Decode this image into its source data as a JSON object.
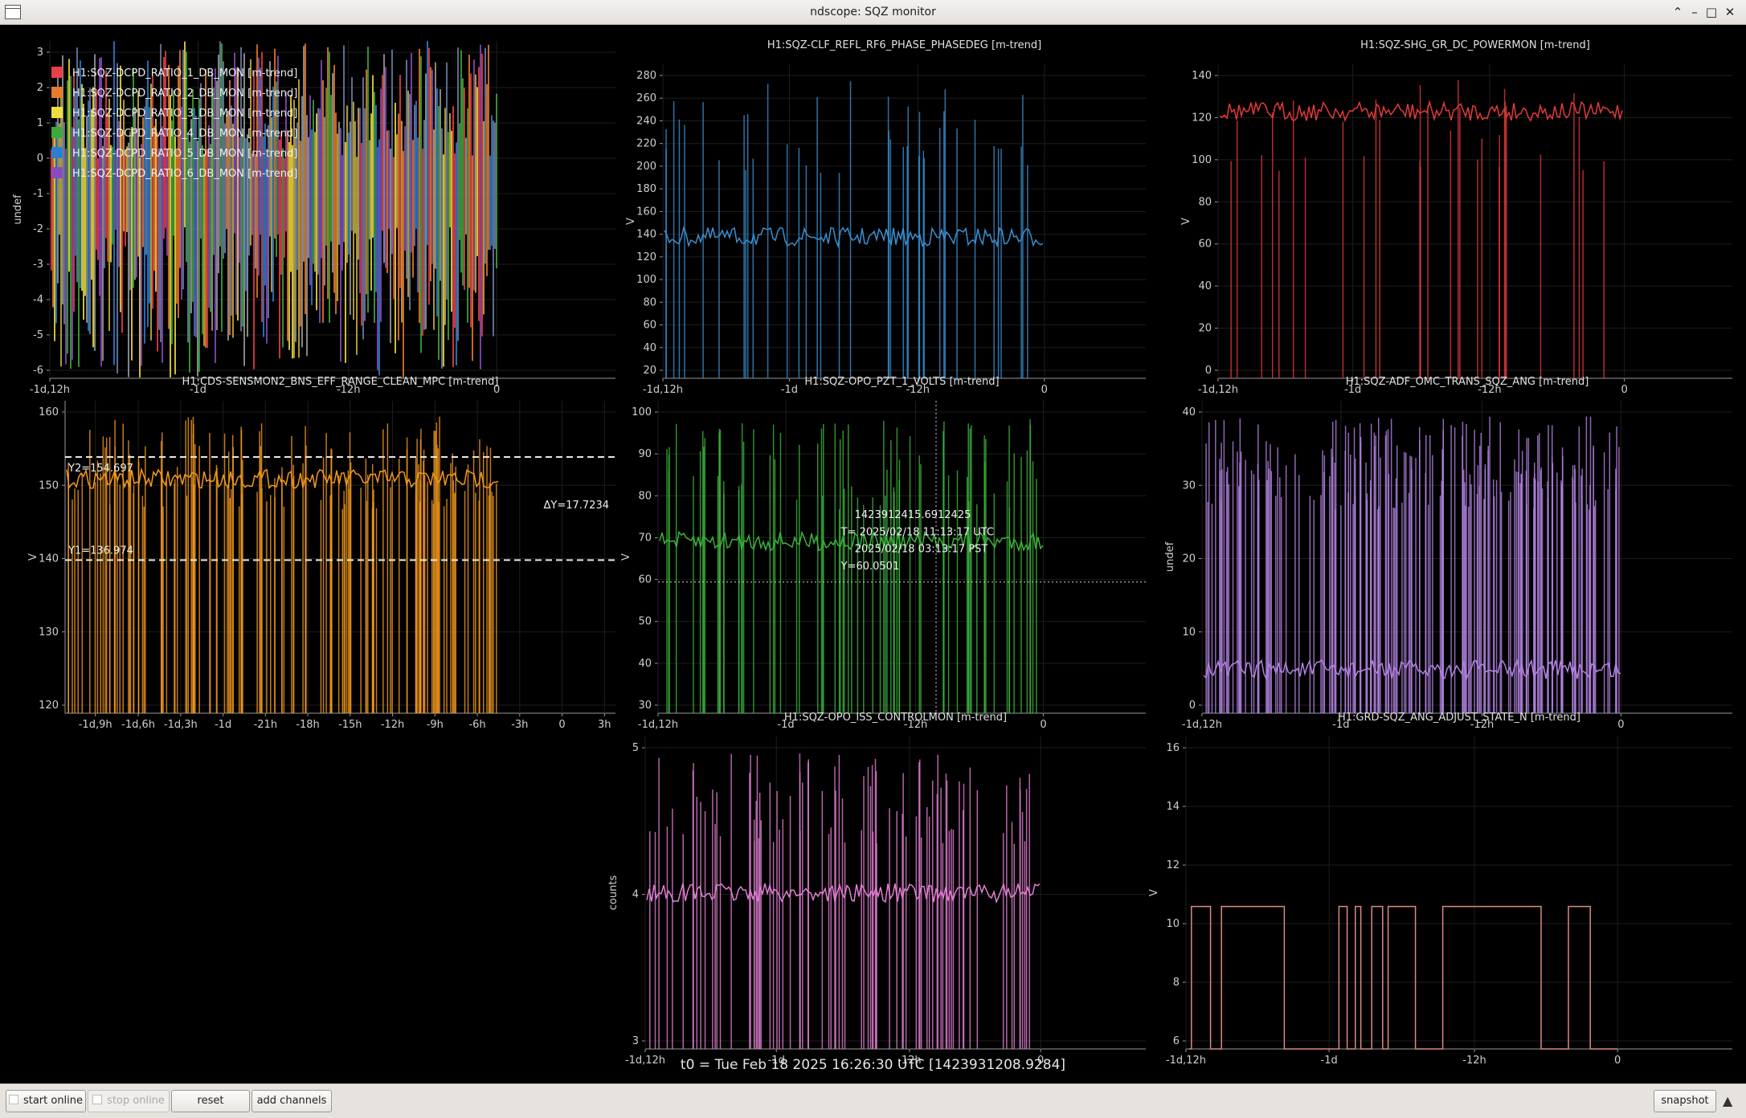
{
  "window": {
    "title": "ndscope: SQZ monitor"
  },
  "plots": [
    {
      "id": "p1",
      "title": "",
      "ylabel": "undef",
      "yticks": [
        "3",
        "2",
        "1",
        "0",
        "-1",
        "-2",
        "-3",
        "-4",
        "-5",
        "-6"
      ],
      "xticks": [
        "-1d,12h",
        "-1d",
        "-12h",
        "0"
      ],
      "legend": [
        {
          "label": "H1:SQZ-DCPD_RATIO_1_DB_MON [m-trend]",
          "color": "#e8404a"
        },
        {
          "label": "H1:SQZ-DCPD_RATIO_2_DB_MON [m-trend]",
          "color": "#e97b2a"
        },
        {
          "label": "H1:SQZ-DCPD_RATIO_3_DB_MON [m-trend]",
          "color": "#f0de3c"
        },
        {
          "label": "H1:SQZ-DCPD_RATIO_4_DB_MON [m-trend]",
          "color": "#3fa83a"
        },
        {
          "label": "H1:SQZ-DCPD_RATIO_5_DB_MON [m-trend]",
          "color": "#2c7fd0"
        },
        {
          "label": "H1:SQZ-DCPD_RATIO_6_DB_MON [m-trend]",
          "color": "#8a4bbf"
        }
      ]
    },
    {
      "id": "p2",
      "title": "H1:SQZ-CLF_REFL_RF6_PHASE_PHASEDEG [m-trend]",
      "ylabel": "V",
      "color": "#3a8fd0",
      "yticks": [
        "280",
        "260",
        "240",
        "220",
        "200",
        "180",
        "160",
        "140",
        "120",
        "100",
        "80",
        "60",
        "40",
        "20"
      ],
      "xticks": [
        "-1d,12h",
        "-1d",
        "-12h",
        "0"
      ]
    },
    {
      "id": "p3",
      "title": "H1:SQZ-SHG_GR_DC_POWERMON [m-trend]",
      "ylabel": "V",
      "color": "#e33a3a",
      "yticks": [
        "140",
        "120",
        "100",
        "80",
        "60",
        "40",
        "20",
        "0"
      ],
      "xticks": [
        "-1d,12h",
        "-1d",
        "-12h",
        "0"
      ]
    },
    {
      "id": "p4",
      "title": "H1:CDS-SENSMON2_BNS_EFF_RANGE_CLEAN_MPC [m-trend]",
      "ylabel": "V",
      "color": "#f39a1c",
      "yticks": [
        "160",
        "150",
        "140",
        "130",
        "120"
      ],
      "xticks": [
        "-1d,9h",
        "-1d,6h",
        "-1d,3h",
        "-1d",
        "-21h",
        "-18h",
        "-15h",
        "-12h",
        "-9h",
        "-6h",
        "-3h",
        "0",
        "3h"
      ],
      "cursors": {
        "y2": "Y2=154.697",
        "y1": "Y1=136.974",
        "dy": "ΔY=17.7234"
      }
    },
    {
      "id": "p5",
      "title": "H1:SQZ-OPO_PZT_1_VOLTS [m-trend]",
      "ylabel": "V",
      "color": "#3bb33b",
      "yticks": [
        "100",
        "90",
        "80",
        "70",
        "60",
        "50",
        "40",
        "30"
      ],
      "xticks": [
        "-1d,12h",
        "-1d",
        "-12h",
        "0"
      ],
      "cursor": {
        "gps": "1423912415.6912425",
        "utc": "T= 2025/02/18 11:13:17 UTC",
        "pst": "2025/02/18 03:13:17 PST",
        "y": "Y=60.0501"
      }
    },
    {
      "id": "p6",
      "title": "H1:SQZ-ADF_OMC_TRANS_SQZ_ANG [m-trend]",
      "ylabel": "undef",
      "color": "#b283e0",
      "yticks": [
        "40",
        "30",
        "20",
        "10",
        "0"
      ],
      "xticks": [
        "-1d,12h",
        "-1d",
        "-12h",
        "0"
      ]
    },
    {
      "id": "p7",
      "title": "H1:SQZ-OPO_ISS_CONTROLMON [m-trend]",
      "ylabel": "counts",
      "color": "#e07fd0",
      "yticks": [
        "5",
        "4",
        "3"
      ],
      "xticks": [
        "-1d,12h",
        "-1d",
        "-12h",
        "0"
      ]
    },
    {
      "id": "p8",
      "title": "H1:GRD-SQZ_ANG_ADJUST_STATE_N [m-trend]",
      "ylabel": "V",
      "color": "#d98b82",
      "yticks": [
        "16",
        "14",
        "12",
        "10",
        "8",
        "6"
      ],
      "xticks": [
        "-1d,12h",
        "-1d",
        "-12h",
        "0"
      ]
    }
  ],
  "footer": {
    "t0": "t0 = Tue Feb 18 2025 16:26:30 UTC [1423931208.9284]"
  },
  "buttons": {
    "start_online": "start online",
    "stop_online": "stop online",
    "reset": "reset",
    "add_channels": "add channels",
    "snapshot": "snapshot"
  }
}
